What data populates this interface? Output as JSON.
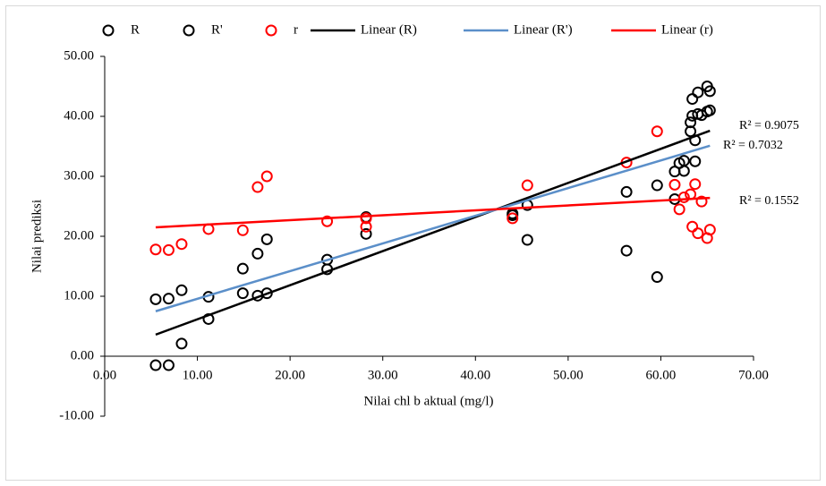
{
  "chart_data": {
    "type": "scatter",
    "x_label": "Nilai chl b aktual (mg/l)",
    "y_label": "Nilai prediksi",
    "xlim": [
      0,
      70
    ],
    "ylim": [
      -10,
      50
    ],
    "xticks": [
      {
        "value": 0,
        "label": "0.00"
      },
      {
        "value": 10,
        "label": "10.00"
      },
      {
        "value": 20,
        "label": "20.00"
      },
      {
        "value": 30,
        "label": "30.00"
      },
      {
        "value": 40,
        "label": "40.00"
      },
      {
        "value": 50,
        "label": "50.00"
      },
      {
        "value": 60,
        "label": "60.00"
      },
      {
        "value": 70,
        "label": "70.00"
      }
    ],
    "yticks": [
      {
        "value": -10,
        "label": "-10.00"
      },
      {
        "value": 0,
        "label": "0.00"
      },
      {
        "value": 10,
        "label": "10.00"
      },
      {
        "value": 20,
        "label": "20.00"
      },
      {
        "value": 30,
        "label": "30.00"
      },
      {
        "value": 40,
        "label": "40.00"
      },
      {
        "value": 50,
        "label": "50.00"
      }
    ],
    "grid": false,
    "legend": "top",
    "series": [
      {
        "name": "R",
        "mode": "markers",
        "color": "#000000",
        "x": [
          5.5,
          6.9,
          8.3,
          11.2,
          14.9,
          16.5,
          17.5,
          24.0,
          28.2,
          44.0,
          45.6,
          56.3,
          59.6,
          61.5,
          62.0,
          62.5,
          63.2,
          63.4,
          63.7,
          64.0,
          64.4,
          65.0,
          65.3
        ],
        "values": [
          -1.5,
          -1.5,
          2.1,
          6.2,
          10.5,
          10.1,
          10.5,
          14.5,
          20.4,
          23.5,
          25.2,
          27.4,
          28.5,
          30.8,
          32.2,
          32.6,
          39.0,
          42.9,
          36.0,
          44.0,
          40.2,
          45.0,
          44.2
        ]
      },
      {
        "name": "R'",
        "mode": "markers",
        "color": "#000000",
        "x": [
          5.5,
          6.9,
          8.3,
          11.2,
          14.9,
          16.5,
          17.5,
          24.0,
          28.2,
          44.0,
          45.6,
          56.3,
          59.6,
          61.5,
          62.5,
          63.2,
          63.4,
          63.7,
          64.0,
          65.0,
          65.3
        ],
        "values": [
          9.5,
          9.6,
          11.0,
          9.9,
          14.6,
          17.1,
          19.5,
          16.1,
          23.2,
          23.8,
          19.4,
          17.6,
          13.2,
          26.2,
          30.9,
          37.5,
          40.1,
          32.5,
          40.4,
          40.8,
          41.0
        ]
      },
      {
        "name": "r",
        "mode": "markers",
        "color": "#ff0000",
        "x": [
          5.5,
          6.9,
          8.3,
          11.2,
          14.9,
          16.5,
          17.5,
          24.0,
          28.2,
          28.2,
          44.0,
          45.6,
          56.3,
          59.6,
          61.5,
          62.0,
          62.5,
          63.2,
          63.4,
          63.7,
          64.0,
          64.4,
          65.0,
          65.3
        ],
        "values": [
          17.8,
          17.7,
          18.7,
          21.2,
          21.0,
          28.2,
          30.0,
          22.5,
          23.0,
          21.6,
          23.0,
          28.5,
          32.3,
          37.5,
          28.6,
          24.5,
          26.5,
          27.0,
          21.6,
          28.7,
          20.5,
          25.8,
          19.7,
          21.1
        ]
      },
      {
        "name": "Linear (R)",
        "mode": "line",
        "color": "#000000",
        "x": [
          5.5,
          65.3
        ],
        "values": [
          3.6,
          37.6
        ]
      },
      {
        "name": "Linear (R')",
        "mode": "line",
        "color": "#5b8fc9",
        "x": [
          5.5,
          65.3
        ],
        "values": [
          7.5,
          35.1
        ]
      },
      {
        "name": "Linear (r)",
        "mode": "line",
        "color": "#ff0000",
        "x": [
          5.5,
          65.3
        ],
        "values": [
          21.5,
          26.4
        ]
      }
    ],
    "annotations": [
      "R² = 0.9075",
      "R² = 0.7032",
      "R² = 0.1552"
    ]
  }
}
